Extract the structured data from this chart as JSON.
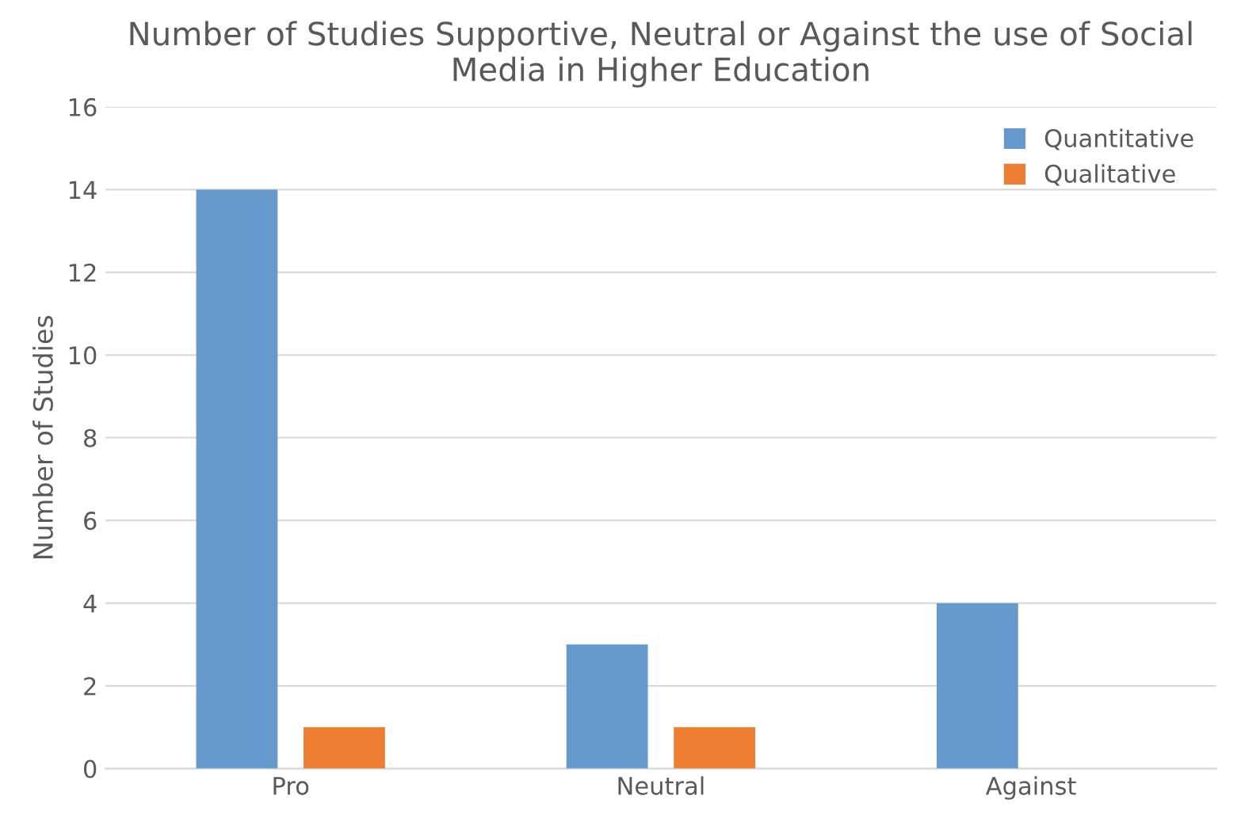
{
  "chart_data": {
    "type": "bar",
    "title": "Number of Studies Supportive, Neutral or Against the use of Social Media in Higher Education",
    "ylabel": "Number of Studies",
    "categories": [
      "Pro",
      "Neutral",
      "Against"
    ],
    "series": [
      {
        "name": "Quantitative",
        "color": "#6699cc",
        "values": [
          14,
          3,
          4
        ]
      },
      {
        "name": "Qualitative",
        "color": "#ed7d31",
        "values": [
          1,
          1,
          0
        ]
      }
    ],
    "ylim": [
      0,
      16
    ],
    "yticks": [
      0,
      2,
      4,
      6,
      8,
      10,
      12,
      14,
      16
    ],
    "grid": "y",
    "legend": "top right"
  }
}
